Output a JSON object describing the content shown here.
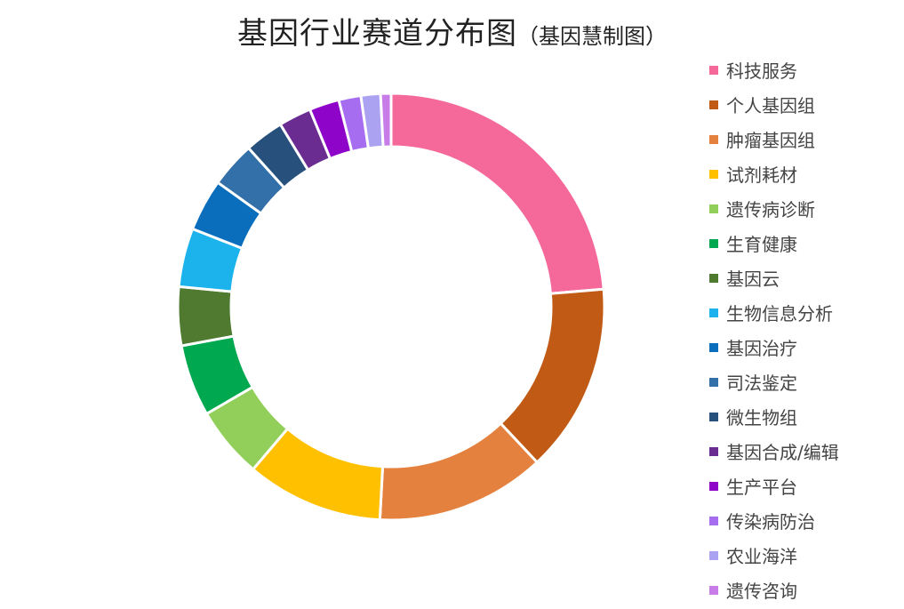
{
  "chart_data": {
    "type": "pie",
    "subtype": "donut",
    "title": "基因行业赛道分布图",
    "subtitle": "（基因慧制图）",
    "legend_position": "right",
    "slices": [
      {
        "label": "科技服务",
        "value": 24.0,
        "color": "#F4689A"
      },
      {
        "label": "个人基因组",
        "value": 14.5,
        "color": "#C05A15"
      },
      {
        "label": "肿瘤基因组",
        "value": 13.0,
        "color": "#E5813E"
      },
      {
        "label": "试剂耗材",
        "value": 10.5,
        "color": "#FFC000"
      },
      {
        "label": "遗传病诊断",
        "value": 5.5,
        "color": "#92CF5A"
      },
      {
        "label": "生育健康",
        "value": 5.5,
        "color": "#00A84F"
      },
      {
        "label": "基因云",
        "value": 4.5,
        "color": "#4F7A30"
      },
      {
        "label": "生物信息分析",
        "value": 4.5,
        "color": "#1CB3EC"
      },
      {
        "label": "基因治疗",
        "value": 4.0,
        "color": "#0A6EBD"
      },
      {
        "label": "司法鉴定",
        "value": 3.5,
        "color": "#336FA8"
      },
      {
        "label": "微生物组",
        "value": 3.0,
        "color": "#27507D"
      },
      {
        "label": "基因合成/编辑",
        "value": 2.5,
        "color": "#6A2C91"
      },
      {
        "label": "生产平台",
        "value": 2.3,
        "color": "#8E04C8"
      },
      {
        "label": "传染病防治",
        "value": 1.7,
        "color": "#A66DF0"
      },
      {
        "label": "农业海洋",
        "value": 1.5,
        "color": "#ABA2F2"
      },
      {
        "label": "遗传咨询",
        "value": 0.8,
        "color": "#C77CE8"
      }
    ]
  }
}
